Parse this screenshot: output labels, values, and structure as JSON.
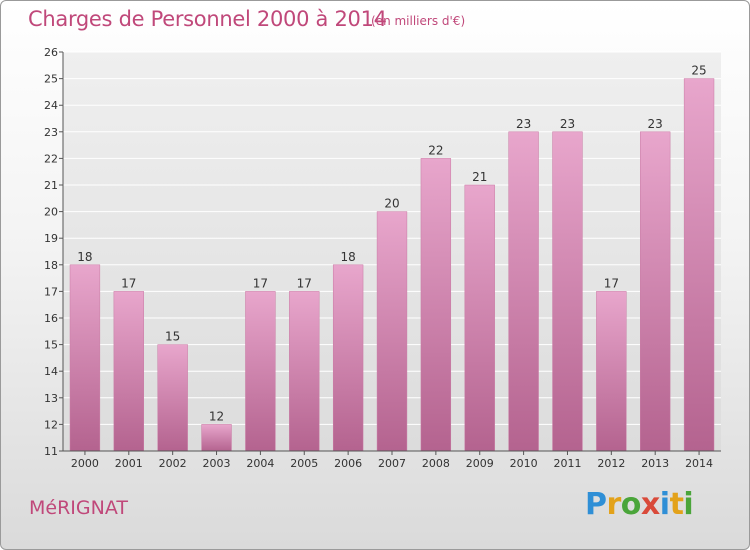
{
  "chart_data": {
    "type": "bar",
    "title": "Charges de Personnel 2000 à 2014",
    "subtitle": "(en milliers d'€)",
    "categories": [
      "2000",
      "2001",
      "2002",
      "2003",
      "2004",
      "2005",
      "2006",
      "2007",
      "2008",
      "2009",
      "2010",
      "2011",
      "2012",
      "2013",
      "2014"
    ],
    "values": [
      18,
      17,
      15,
      12,
      17,
      17,
      18,
      20,
      22,
      21,
      23,
      23,
      17,
      23,
      25
    ],
    "ylim": [
      11,
      26
    ],
    "yticks": [
      11,
      12,
      13,
      14,
      15,
      16,
      17,
      18,
      19,
      20,
      21,
      22,
      23,
      24,
      25,
      26
    ],
    "grid": true,
    "bar_color": "#d98bb4"
  },
  "location": "MéRIGNAT",
  "logo": {
    "letters": [
      "P",
      "r",
      "o",
      "x",
      "i",
      "t",
      "i"
    ]
  }
}
